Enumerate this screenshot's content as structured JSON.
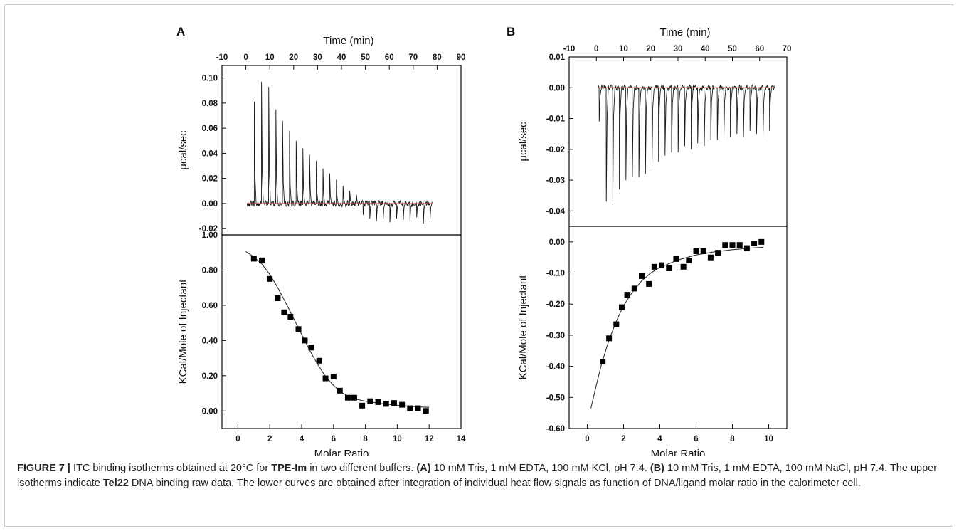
{
  "colors": {
    "frame": "#c8c8c8",
    "trace": "#1a1a1a",
    "baseline": "#d9534f",
    "marker": "#000000",
    "fit": "#333333"
  },
  "chart_data": [
    {
      "panel": "A",
      "type": "line",
      "role": "raw-thermogram",
      "xlabel": "Time (min)",
      "ylabel": "µcal/sec",
      "xlim": [
        -10,
        90
      ],
      "ylim": [
        -0.025,
        0.11
      ],
      "x_ticks": [
        "-10",
        "0",
        "10",
        "20",
        "30",
        "40",
        "50",
        "60",
        "70",
        "80",
        "90"
      ],
      "y_ticks": [
        "-0.02",
        "0.00",
        "0.02",
        "0.04",
        "0.06",
        "0.08",
        "0.10"
      ],
      "trace": {
        "start": 0.5,
        "end": 78,
        "noise": 0.0025,
        "seed": 7
      },
      "spikes": [
        {
          "t": 3.5,
          "v": 0.081
        },
        {
          "t": 6.5,
          "v": 0.097
        },
        {
          "t": 9.5,
          "v": 0.093
        },
        {
          "t": 12.5,
          "v": 0.075
        },
        {
          "t": 15.3,
          "v": 0.066
        },
        {
          "t": 18.2,
          "v": 0.058
        },
        {
          "t": 21,
          "v": 0.05
        },
        {
          "t": 23.8,
          "v": 0.044
        },
        {
          "t": 26.6,
          "v": 0.039
        },
        {
          "t": 29.4,
          "v": 0.034
        },
        {
          "t": 32.2,
          "v": 0.028
        },
        {
          "t": 35,
          "v": 0.024
        },
        {
          "t": 37.8,
          "v": 0.019
        },
        {
          "t": 40.6,
          "v": 0.014
        },
        {
          "t": 43.4,
          "v": 0.01
        },
        {
          "t": 46.2,
          "v": 0.007
        },
        {
          "t": 49,
          "v": -0.009
        },
        {
          "t": 51.8,
          "v": -0.012
        },
        {
          "t": 54.6,
          "v": -0.014
        },
        {
          "t": 57.4,
          "v": -0.013
        },
        {
          "t": 60.2,
          "v": -0.015
        },
        {
          "t": 63,
          "v": -0.012
        },
        {
          "t": 65.8,
          "v": -0.013
        },
        {
          "t": 68.6,
          "v": -0.014
        },
        {
          "t": 71.4,
          "v": -0.011
        },
        {
          "t": 74.2,
          "v": -0.016
        },
        {
          "t": 77,
          "v": -0.013
        }
      ]
    },
    {
      "panel": "A",
      "type": "scatter",
      "role": "integrated-isotherm",
      "xlabel": "Molar Ratio",
      "ylabel": "KCal/Mole of Injectant",
      "xlim": [
        -1,
        14
      ],
      "ylim": [
        -0.1,
        1.0
      ],
      "x_ticks": [
        "0",
        "2",
        "4",
        "6",
        "8",
        "10",
        "12",
        "14"
      ],
      "y_ticks": [
        "0.00",
        "0.20",
        "0.40",
        "0.60",
        "0.80",
        "1.00"
      ],
      "points": [
        [
          1.0,
          0.865
        ],
        [
          1.5,
          0.855
        ],
        [
          2.0,
          0.75
        ],
        [
          2.5,
          0.64
        ],
        [
          2.9,
          0.56
        ],
        [
          3.3,
          0.535
        ],
        [
          3.8,
          0.465
        ],
        [
          4.2,
          0.4
        ],
        [
          4.6,
          0.36
        ],
        [
          5.1,
          0.285
        ],
        [
          5.5,
          0.185
        ],
        [
          6.0,
          0.195
        ],
        [
          6.4,
          0.115
        ],
        [
          6.9,
          0.075
        ],
        [
          7.3,
          0.075
        ],
        [
          7.8,
          0.03
        ],
        [
          8.3,
          0.055
        ],
        [
          8.8,
          0.05
        ],
        [
          9.3,
          0.04
        ],
        [
          9.8,
          0.045
        ],
        [
          10.3,
          0.035
        ],
        [
          10.8,
          0.015
        ],
        [
          11.3,
          0.015
        ],
        [
          11.8,
          0.0
        ]
      ],
      "fit": [
        [
          0.5,
          0.905
        ],
        [
          1.0,
          0.875
        ],
        [
          1.5,
          0.835
        ],
        [
          2.0,
          0.775
        ],
        [
          2.5,
          0.7
        ],
        [
          3.0,
          0.615
        ],
        [
          3.5,
          0.525
        ],
        [
          4.0,
          0.435
        ],
        [
          4.5,
          0.345
        ],
        [
          5.0,
          0.265
        ],
        [
          5.5,
          0.195
        ],
        [
          6.0,
          0.145
        ],
        [
          6.5,
          0.105
        ],
        [
          7.0,
          0.08
        ],
        [
          7.5,
          0.065
        ],
        [
          8.0,
          0.055
        ],
        [
          9.0,
          0.042
        ],
        [
          10.0,
          0.032
        ],
        [
          11.0,
          0.025
        ],
        [
          12.0,
          0.02
        ]
      ]
    },
    {
      "panel": "B",
      "type": "line",
      "role": "raw-thermogram",
      "xlabel": "Time (min)",
      "ylabel": "µcal/sec",
      "xlim": [
        -10,
        70
      ],
      "ylim": [
        -0.045,
        0.01
      ],
      "x_ticks": [
        "-10",
        "0",
        "10",
        "20",
        "30",
        "40",
        "50",
        "60",
        "70"
      ],
      "y_ticks": [
        "-0.04",
        "-0.03",
        "-0.02",
        "-0.01",
        "0.00",
        "0.01"
      ],
      "trace": {
        "start": 0.5,
        "end": 65.5,
        "noise": 0.0009,
        "seed": 3
      },
      "spikes": [
        {
          "t": 1.0,
          "v": -0.011
        },
        {
          "t": 3.6,
          "v": -0.037
        },
        {
          "t": 6.0,
          "v": -0.037
        },
        {
          "t": 8.4,
          "v": -0.033
        },
        {
          "t": 10.8,
          "v": -0.03
        },
        {
          "t": 13.2,
          "v": -0.029
        },
        {
          "t": 15.6,
          "v": -0.029
        },
        {
          "t": 18.0,
          "v": -0.028
        },
        {
          "t": 20.4,
          "v": -0.026
        },
        {
          "t": 22.8,
          "v": -0.024
        },
        {
          "t": 25.2,
          "v": -0.022
        },
        {
          "t": 27.6,
          "v": -0.021
        },
        {
          "t": 30.0,
          "v": -0.021
        },
        {
          "t": 32.4,
          "v": -0.019
        },
        {
          "t": 34.8,
          "v": -0.02
        },
        {
          "t": 37.2,
          "v": -0.018
        },
        {
          "t": 39.6,
          "v": -0.019
        },
        {
          "t": 42.0,
          "v": -0.017
        },
        {
          "t": 44.4,
          "v": -0.017
        },
        {
          "t": 46.8,
          "v": -0.016
        },
        {
          "t": 49.2,
          "v": -0.016
        },
        {
          "t": 51.6,
          "v": -0.015
        },
        {
          "t": 54.0,
          "v": -0.016
        },
        {
          "t": 56.4,
          "v": -0.014
        },
        {
          "t": 58.8,
          "v": -0.015
        },
        {
          "t": 61.2,
          "v": -0.016
        },
        {
          "t": 63.6,
          "v": -0.014
        }
      ]
    },
    {
      "panel": "B",
      "type": "scatter",
      "role": "integrated-isotherm",
      "xlabel": "Molar Ratio",
      "ylabel": "KCal/Mole of Injectant",
      "xlim": [
        -1,
        11
      ],
      "ylim": [
        -0.6,
        0.05
      ],
      "x_ticks": [
        "0",
        "2",
        "4",
        "6",
        "8",
        "10"
      ],
      "y_ticks": [
        "-0.60",
        "-0.50",
        "-0.40",
        "-0.30",
        "-0.20",
        "-0.10",
        "0.00"
      ],
      "points": [
        [
          0.85,
          -0.385
        ],
        [
          1.2,
          -0.31
        ],
        [
          1.6,
          -0.265
        ],
        [
          1.9,
          -0.21
        ],
        [
          2.2,
          -0.17
        ],
        [
          2.6,
          -0.15
        ],
        [
          3.0,
          -0.11
        ],
        [
          3.4,
          -0.135
        ],
        [
          3.7,
          -0.08
        ],
        [
          4.1,
          -0.075
        ],
        [
          4.5,
          -0.085
        ],
        [
          4.9,
          -0.055
        ],
        [
          5.3,
          -0.08
        ],
        [
          5.6,
          -0.06
        ],
        [
          6.0,
          -0.03
        ],
        [
          6.4,
          -0.03
        ],
        [
          6.8,
          -0.05
        ],
        [
          7.2,
          -0.035
        ],
        [
          7.6,
          -0.01
        ],
        [
          8.0,
          -0.01
        ],
        [
          8.4,
          -0.01
        ],
        [
          8.8,
          -0.02
        ],
        [
          9.2,
          -0.005
        ],
        [
          9.6,
          0.0
        ]
      ],
      "fit": [
        [
          0.2,
          -0.535
        ],
        [
          0.5,
          -0.46
        ],
        [
          0.8,
          -0.39
        ],
        [
          1.2,
          -0.315
        ],
        [
          1.6,
          -0.255
        ],
        [
          2.0,
          -0.205
        ],
        [
          2.5,
          -0.16
        ],
        [
          3.0,
          -0.125
        ],
        [
          3.5,
          -0.1
        ],
        [
          4.0,
          -0.082
        ],
        [
          5.0,
          -0.058
        ],
        [
          6.0,
          -0.042
        ],
        [
          7.0,
          -0.032
        ],
        [
          8.0,
          -0.025
        ],
        [
          9.0,
          -0.02
        ],
        [
          9.7,
          -0.017
        ]
      ]
    }
  ],
  "caption": {
    "figure_label": "FIGURE 7 |",
    "t1": " ITC binding isotherms obtained at 20°C for ",
    "compound": "TPE-Im",
    "t2": " in two different buffers. ",
    "a_label": "(A)",
    "a_text": " 10 mM Tris, 1 mM EDTA, 100 mM KCl, pH 7.4. ",
    "b_label": "(B)",
    "b_text": " 10 mM Tris, 1 mM EDTA, 100 mM NaCl, pH 7.4. The upper isotherms indicate ",
    "dna": "Tel22",
    "t3": " DNA binding raw data. The lower curves are obtained after integration of individual heat flow signals as function of DNA/ligand molar ratio in the calorimeter cell."
  }
}
